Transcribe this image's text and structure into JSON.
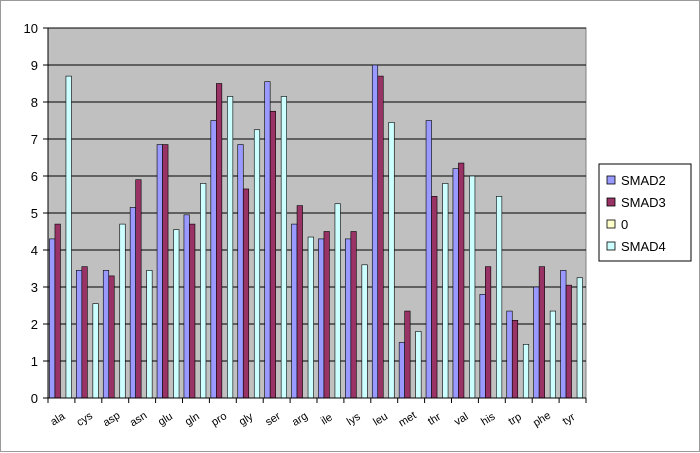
{
  "chart_data": {
    "type": "bar",
    "categories": [
      "ala",
      "cys",
      "asp",
      "asn",
      "glu",
      "gln",
      "pro",
      "gly",
      "ser",
      "arg",
      "ile",
      "lys",
      "leu",
      "met",
      "thr",
      "val",
      "his",
      "trp",
      "phe",
      "tyr"
    ],
    "series": [
      {
        "name": "SMAD2",
        "color": "#9999ff",
        "values": [
          4.3,
          3.45,
          3.45,
          5.15,
          6.85,
          4.95,
          7.5,
          6.85,
          8.55,
          4.7,
          4.3,
          4.3,
          9.0,
          1.5,
          7.5,
          6.2,
          2.8,
          2.35,
          3.0,
          3.45
        ]
      },
      {
        "name": "SMAD3",
        "color": "#993366",
        "values": [
          4.7,
          3.55,
          3.3,
          5.9,
          6.85,
          4.7,
          8.5,
          5.65,
          7.75,
          5.2,
          4.5,
          4.5,
          8.7,
          2.35,
          5.45,
          6.35,
          3.55,
          2.1,
          3.55,
          3.05
        ]
      },
      {
        "name": "0",
        "color": "#ffffcc",
        "values": [
          0,
          0,
          0,
          0,
          0,
          0,
          0,
          0,
          0,
          0,
          0,
          0,
          0,
          0,
          0,
          0,
          0,
          0,
          0,
          0
        ]
      },
      {
        "name": "SMAD4",
        "color": "#ccffff",
        "values": [
          8.7,
          2.55,
          4.7,
          3.45,
          4.55,
          5.8,
          8.15,
          7.25,
          8.15,
          4.35,
          5.25,
          3.6,
          7.45,
          1.8,
          5.8,
          6.0,
          5.45,
          1.45,
          2.35,
          3.25
        ]
      }
    ],
    "y_ticks": [
      "0",
      "1",
      "2",
      "3",
      "4",
      "5",
      "6",
      "7",
      "8",
      "9",
      "10"
    ],
    "ylim": [
      0,
      10
    ],
    "grid": true,
    "legend_position": "right",
    "plot_background": "#c0c0c0",
    "title": "",
    "xlabel": "",
    "ylabel": ""
  }
}
